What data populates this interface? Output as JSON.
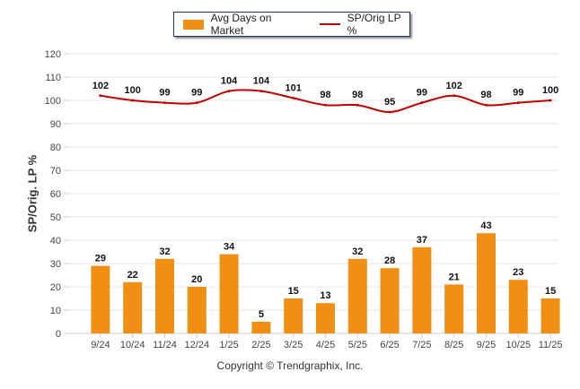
{
  "chart_data": {
    "type": "bar+line",
    "categories": [
      "9/24",
      "10/24",
      "11/24",
      "12/24",
      "1/25",
      "2/25",
      "3/25",
      "4/25",
      "5/25",
      "6/25",
      "7/25",
      "8/25",
      "9/25",
      "10/25",
      "11/25"
    ],
    "series": [
      {
        "name": "Avg Days on Market",
        "type": "bar",
        "color": "#F18E14",
        "values": [
          29,
          22,
          32,
          20,
          34,
          5,
          15,
          13,
          32,
          28,
          37,
          21,
          43,
          23,
          15
        ]
      },
      {
        "name": "SP/Orig LP %",
        "type": "line",
        "color": "#C00000",
        "values": [
          102,
          100,
          99,
          99,
          104,
          104,
          101,
          98,
          98,
          95,
          99,
          102,
          98,
          99,
          100
        ]
      }
    ],
    "ylabel": "SP/Orig. LP %",
    "ylim": [
      0,
      120
    ],
    "yticks": [
      0,
      10,
      20,
      30,
      40,
      50,
      60,
      70,
      80,
      90,
      100,
      110,
      120
    ],
    "grid": true,
    "legend_position": "top-center"
  },
  "legend": {
    "bar_label": "Avg Days on Market",
    "line_label": "SP/Orig LP %"
  },
  "footer": {
    "copyright": "Copyright © Trendgraphix, Inc."
  }
}
